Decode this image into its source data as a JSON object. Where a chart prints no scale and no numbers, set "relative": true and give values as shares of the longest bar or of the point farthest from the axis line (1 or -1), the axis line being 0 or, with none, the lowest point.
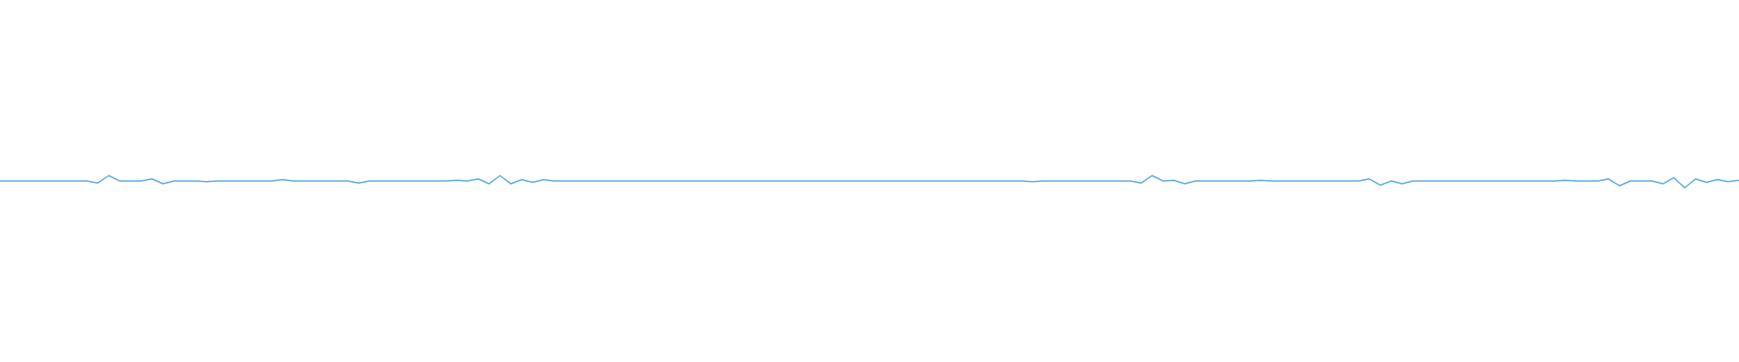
{
  "chart_data": {
    "type": "line",
    "relative": true,
    "marker": "none",
    "line_style": "solid",
    "categories": [
      null,
      null,
      null,
      null,
      null,
      null,
      null,
      null,
      null,
      null,
      null,
      null,
      null,
      null,
      null,
      null,
      null,
      null,
      null,
      null,
      null,
      null,
      null,
      null,
      null,
      null,
      null,
      null,
      null,
      null,
      null,
      null,
      null,
      null,
      null,
      null,
      null,
      null,
      null,
      null,
      null,
      null,
      null,
      null,
      null,
      null,
      null,
      null,
      null,
      null,
      null,
      null,
      null,
      null,
      null,
      null,
      null,
      null,
      null,
      null,
      null,
      null,
      null,
      null,
      null,
      null,
      null,
      null,
      null,
      null,
      null,
      null,
      null,
      null,
      null,
      null,
      null,
      null,
      null,
      null,
      null,
      null,
      null,
      null,
      null,
      null,
      null,
      null,
      null,
      null,
      null,
      null,
      null,
      null,
      null,
      null,
      null,
      null,
      null,
      null,
      null,
      null,
      null,
      null,
      null,
      null,
      null,
      null,
      null,
      null,
      null,
      null,
      null,
      null,
      null,
      null,
      null,
      null,
      null,
      null,
      null,
      null,
      null,
      null,
      null,
      null,
      null,
      null,
      null,
      null,
      null,
      null,
      null,
      null,
      null,
      null,
      null,
      null,
      null,
      null,
      null,
      null,
      null,
      null,
      null,
      null,
      null,
      null,
      null,
      null,
      null,
      null,
      null,
      null,
      null,
      null,
      null,
      null,
      null,
      null,
      null
    ],
    "series": [
      {
        "color": "#5aaae0",
        "values": [
          0.56,
          0.56,
          0.56,
          0.56,
          0.56,
          0.56,
          0.56,
          0.56,
          0.56,
          0.39,
          1,
          0.56,
          0.56,
          0.56,
          0.72,
          0.33,
          0.56,
          0.56,
          0.56,
          0.5,
          0.56,
          0.56,
          0.56,
          0.56,
          0.56,
          0.56,
          0.67,
          0.56,
          0.56,
          0.56,
          0.56,
          0.56,
          0.56,
          0.39,
          0.56,
          0.56,
          0.56,
          0.56,
          0.56,
          0.56,
          0.56,
          0.56,
          0.61,
          0.56,
          0.72,
          0.33,
          1,
          0.33,
          0.67,
          0.44,
          0.67,
          0.56,
          0.56,
          0.56,
          0.56,
          0.56,
          0.56,
          0.56,
          0.56,
          0.56,
          0.56,
          0.56,
          0.56,
          0.56,
          0.56,
          0.56,
          0.56,
          0.56,
          0.56,
          0.56,
          0.56,
          0.56,
          0.56,
          0.56,
          0.56,
          0.56,
          0.56,
          0.56,
          0.56,
          0.56,
          0.56,
          0.56,
          0.56,
          0.56,
          0.56,
          0.56,
          0.56,
          0.56,
          0.56,
          0.56,
          0.56,
          0.56,
          0.56,
          0.56,
          0.56,
          0.5,
          0.56,
          0.56,
          0.56,
          0.56,
          0.56,
          0.56,
          0.56,
          0.56,
          0.56,
          0.39,
          1,
          0.56,
          0.61,
          0.33,
          0.56,
          0.56,
          0.56,
          0.56,
          0.56,
          0.56,
          0.61,
          0.56,
          0.56,
          0.56,
          0.56,
          0.56,
          0.56,
          0.56,
          0.56,
          0.56,
          0.72,
          0.22,
          0.56,
          0.33,
          0.56,
          0.56,
          0.56,
          0.56,
          0.56,
          0.56,
          0.56,
          0.56,
          0.56,
          0.56,
          0.56,
          0.56,
          0.56,
          0.56,
          0.61,
          0.56,
          0.56,
          0.56,
          0.72,
          0.17,
          0.56,
          0.56,
          0.56,
          0.33,
          0.83,
          0,
          0.72,
          0.44,
          0.67,
          0.5,
          0.61
        ]
      }
    ]
  }
}
